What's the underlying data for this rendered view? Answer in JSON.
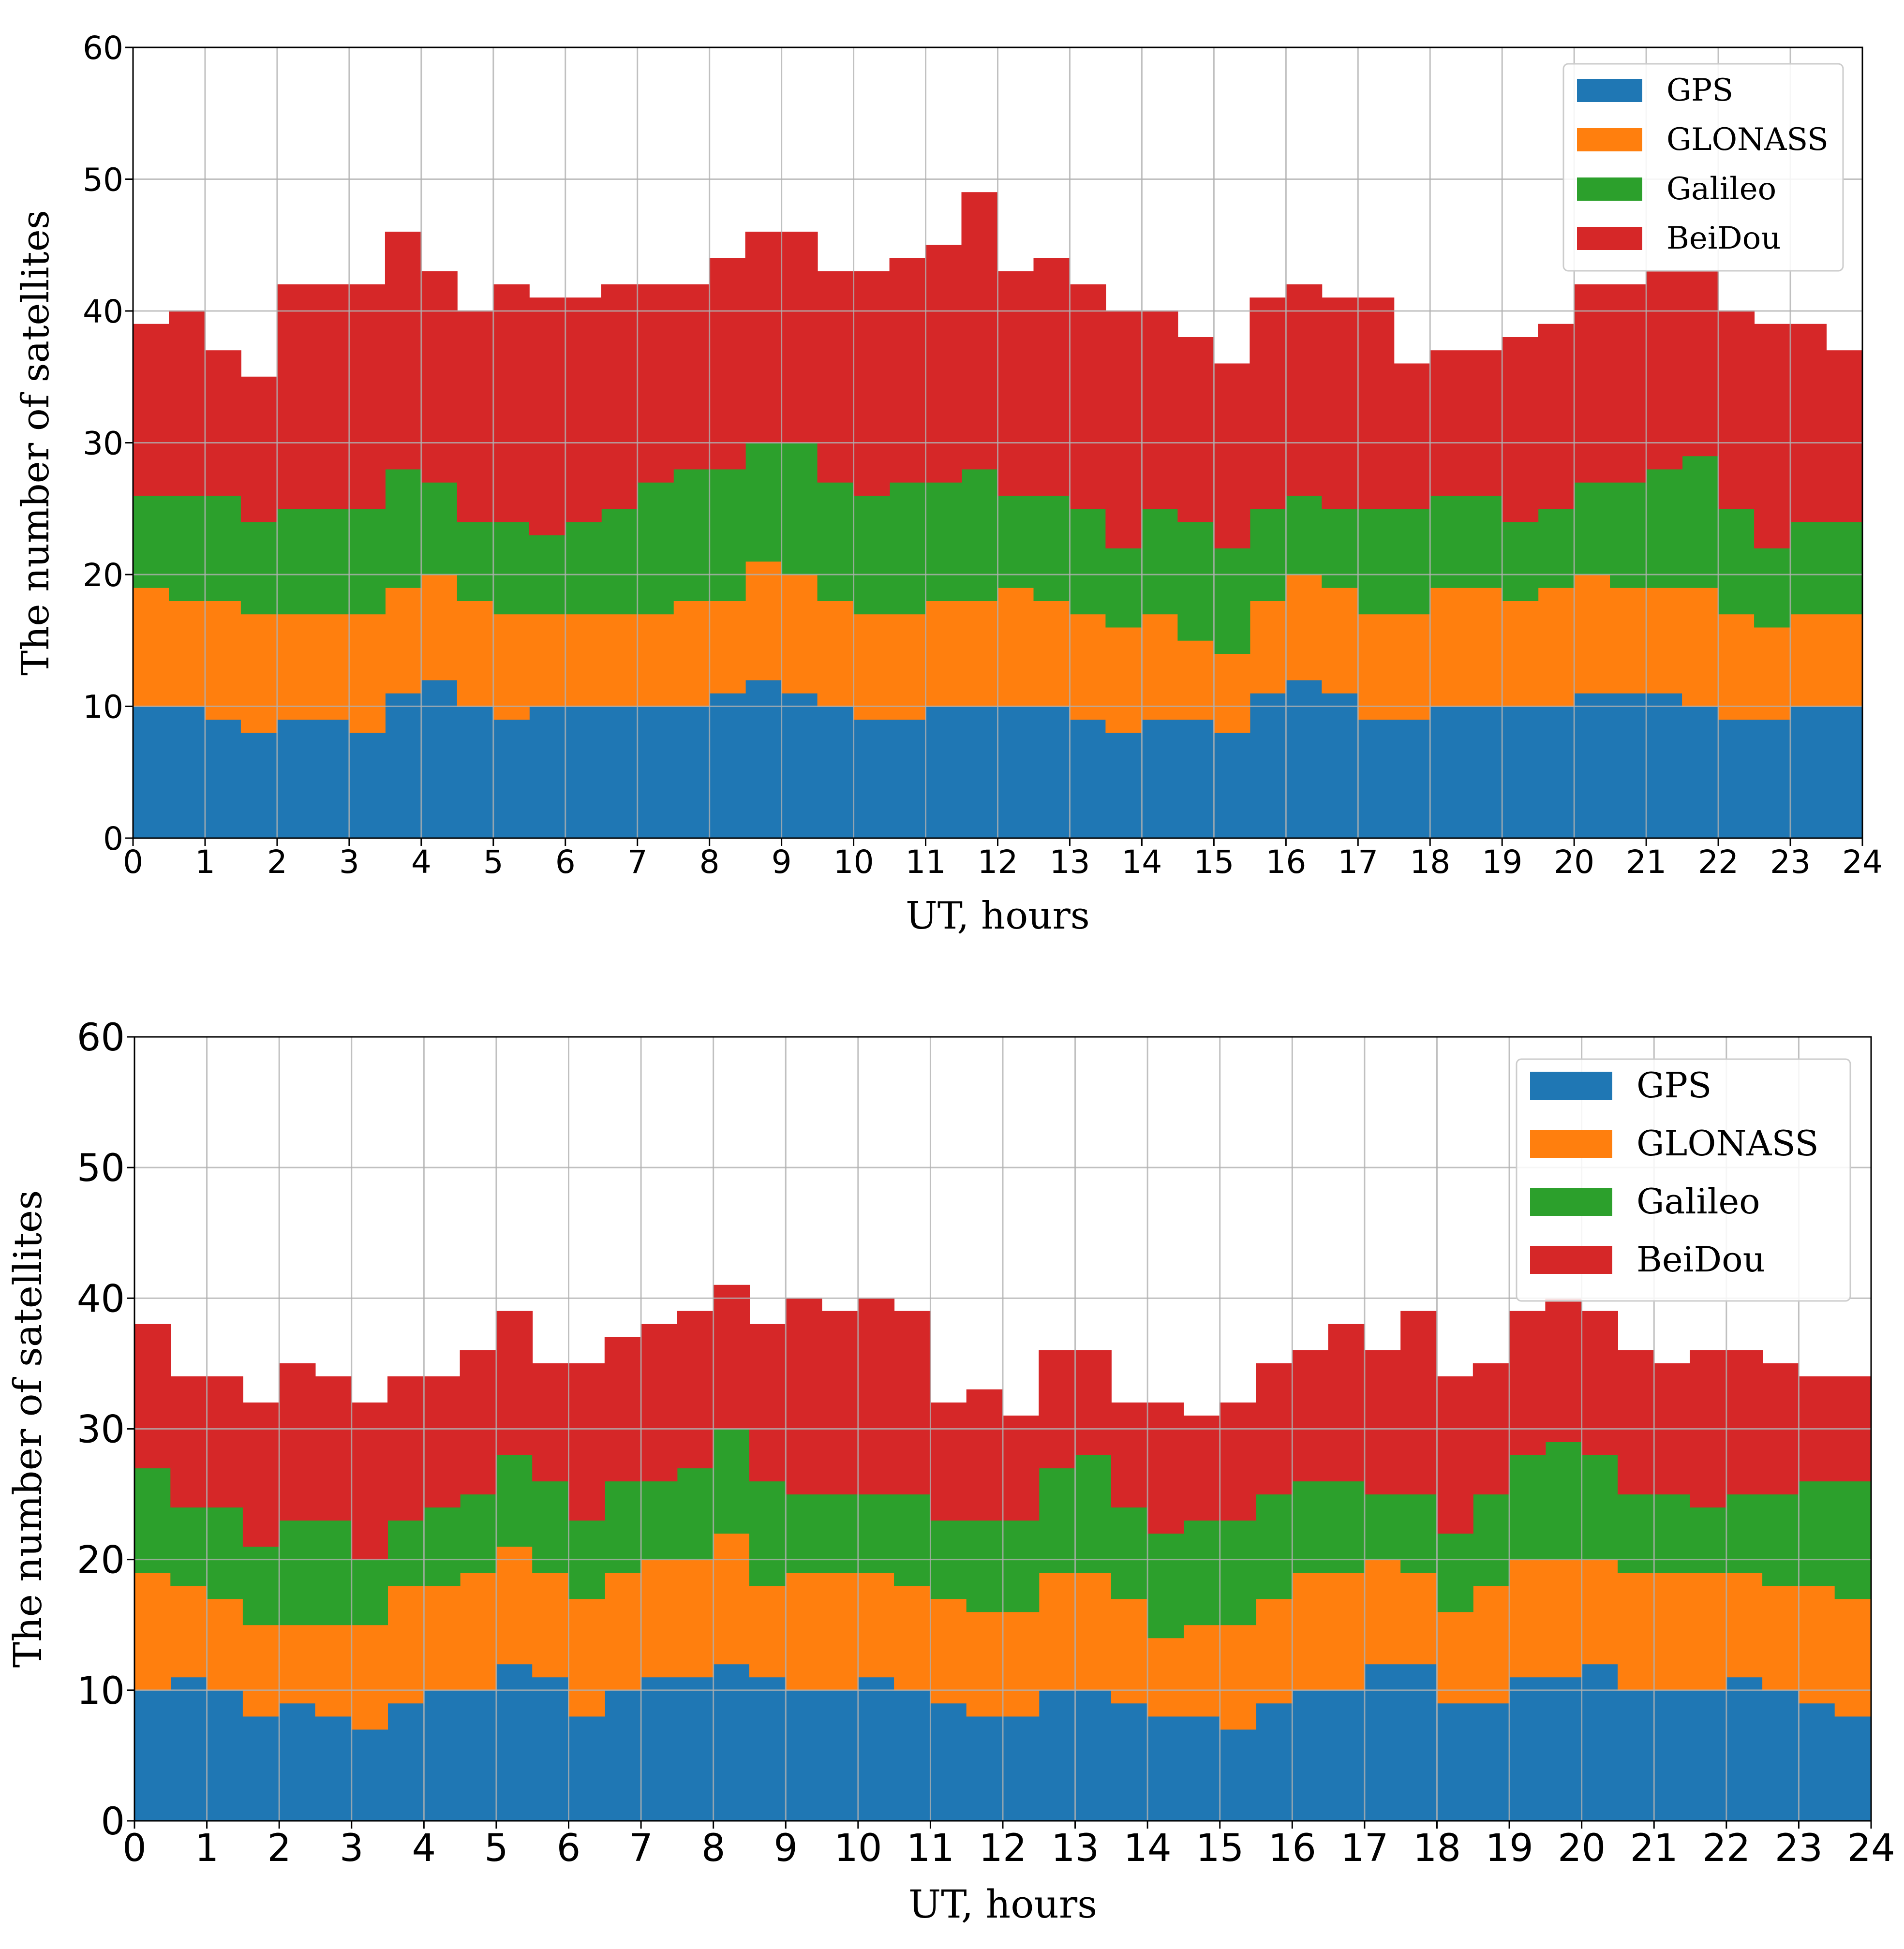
{
  "chart_data": [
    {
      "type": "area",
      "stacked": true,
      "step": true,
      "xlabel": "UT, hours",
      "ylabel": "The number of satellites",
      "xlim": [
        0,
        24
      ],
      "ylim": [
        0,
        60
      ],
      "xticks": [
        "0",
        "1",
        "2",
        "3",
        "4",
        "5",
        "6",
        "7",
        "8",
        "9",
        "10",
        "11",
        "12",
        "13",
        "14",
        "15",
        "16",
        "17",
        "18",
        "19",
        "20",
        "21",
        "22",
        "23",
        "24"
      ],
      "yticks": [
        "0",
        "10",
        "20",
        "30",
        "40",
        "50",
        "60"
      ],
      "grid": true,
      "legend_position": "top-right",
      "colors": {
        "GPS": "#1f77b4",
        "GLONASS": "#ff7f0e",
        "Galileo": "#2ca02c",
        "BeiDou": "#d62728"
      },
      "x": [
        0,
        0.5,
        1,
        1.5,
        2,
        2.5,
        3,
        3.5,
        4,
        4.5,
        5,
        5.5,
        6,
        6.5,
        7,
        7.5,
        8,
        8.5,
        9,
        9.5,
        10,
        10.5,
        11,
        11.5,
        12,
        12.5,
        13,
        13.5,
        14,
        14.5,
        15,
        15.5,
        16,
        16.5,
        17,
        17.5,
        18,
        18.5,
        19,
        19.5,
        20,
        20.5,
        21,
        21.5,
        22,
        22.5,
        23,
        23.5,
        24
      ],
      "series": [
        {
          "name": "GPS",
          "values": [
            10,
            10,
            9,
            8,
            9,
            9,
            8,
            11,
            12,
            10,
            9,
            10,
            10,
            10,
            10,
            10,
            11,
            12,
            11,
            10,
            9,
            9,
            10,
            10,
            10,
            10,
            9,
            8,
            9,
            9,
            8,
            11,
            12,
            11,
            9,
            9,
            10,
            10,
            10,
            10,
            11,
            11,
            11,
            10,
            9,
            9,
            10,
            10,
            10
          ]
        },
        {
          "name": "GLONASS",
          "values": [
            9,
            8,
            9,
            9,
            8,
            8,
            9,
            8,
            8,
            8,
            8,
            7,
            7,
            7,
            7,
            8,
            7,
            9,
            9,
            8,
            8,
            8,
            8,
            8,
            9,
            8,
            8,
            8,
            8,
            6,
            6,
            7,
            8,
            8,
            8,
            8,
            9,
            9,
            8,
            9,
            9,
            8,
            8,
            9,
            8,
            7,
            7,
            7,
            7
          ]
        },
        {
          "name": "Galileo",
          "values": [
            7,
            8,
            8,
            7,
            8,
            8,
            8,
            9,
            7,
            6,
            7,
            6,
            7,
            8,
            10,
            10,
            10,
            9,
            10,
            9,
            9,
            10,
            9,
            10,
            7,
            8,
            8,
            6,
            8,
            9,
            8,
            7,
            6,
            6,
            8,
            8,
            7,
            7,
            6,
            6,
            7,
            8,
            9,
            10,
            8,
            6,
            7,
            7,
            8
          ]
        },
        {
          "name": "BeiDou",
          "values": [
            13,
            14,
            11,
            11,
            17,
            17,
            17,
            18,
            16,
            16,
            18,
            18,
            17,
            17,
            15,
            14,
            16,
            16,
            16,
            16,
            17,
            17,
            18,
            21,
            17,
            18,
            17,
            18,
            15,
            14,
            14,
            16,
            16,
            16,
            16,
            11,
            11,
            11,
            14,
            14,
            15,
            15,
            15,
            14,
            15,
            17,
            15,
            13,
            13
          ]
        }
      ]
    },
    {
      "type": "area",
      "stacked": true,
      "step": true,
      "xlabel": "UT, hours",
      "ylabel": "The number of satellites",
      "xlim": [
        0,
        24
      ],
      "ylim": [
        0,
        60
      ],
      "xticks": [
        "0",
        "1",
        "2",
        "3",
        "4",
        "5",
        "6",
        "7",
        "8",
        "9",
        "10",
        "11",
        "12",
        "13",
        "14",
        "15",
        "16",
        "17",
        "18",
        "19",
        "20",
        "21",
        "22",
        "23",
        "24"
      ],
      "yticks": [
        "0",
        "10",
        "20",
        "30",
        "40",
        "50",
        "60"
      ],
      "grid": true,
      "legend_position": "top-right",
      "colors": {
        "GPS": "#1f77b4",
        "GLONASS": "#ff7f0e",
        "Galileo": "#2ca02c",
        "BeiDou": "#d62728"
      },
      "x": [
        0,
        0.5,
        1,
        1.5,
        2,
        2.5,
        3,
        3.5,
        4,
        4.5,
        5,
        5.5,
        6,
        6.5,
        7,
        7.5,
        8,
        8.5,
        9,
        9.5,
        10,
        10.5,
        11,
        11.5,
        12,
        12.5,
        13,
        13.5,
        14,
        14.5,
        15,
        15.5,
        16,
        16.5,
        17,
        17.5,
        18,
        18.5,
        19,
        19.5,
        20,
        20.5,
        21,
        21.5,
        22,
        22.5,
        23,
        23.5,
        24
      ],
      "series": [
        {
          "name": "GPS",
          "values": [
            10,
            11,
            10,
            8,
            9,
            8,
            7,
            9,
            10,
            10,
            12,
            11,
            8,
            10,
            11,
            11,
            12,
            11,
            10,
            10,
            11,
            10,
            9,
            8,
            8,
            10,
            10,
            9,
            8,
            8,
            7,
            9,
            10,
            10,
            12,
            12,
            9,
            9,
            11,
            11,
            12,
            10,
            10,
            10,
            11,
            10,
            9,
            8,
            10
          ]
        },
        {
          "name": "GLONASS",
          "values": [
            9,
            7,
            7,
            7,
            6,
            7,
            8,
            9,
            8,
            9,
            9,
            8,
            9,
            9,
            9,
            9,
            10,
            7,
            9,
            9,
            8,
            8,
            8,
            8,
            8,
            9,
            9,
            8,
            6,
            7,
            8,
            8,
            9,
            9,
            8,
            7,
            7,
            9,
            9,
            9,
            8,
            9,
            9,
            9,
            8,
            8,
            9,
            9,
            8
          ]
        },
        {
          "name": "Galileo",
          "values": [
            8,
            6,
            7,
            6,
            8,
            8,
            5,
            5,
            6,
            6,
            7,
            7,
            6,
            7,
            6,
            7,
            8,
            8,
            6,
            6,
            6,
            7,
            6,
            7,
            7,
            8,
            9,
            7,
            8,
            8,
            8,
            8,
            7,
            7,
            5,
            6,
            6,
            7,
            8,
            9,
            8,
            6,
            6,
            5,
            6,
            7,
            8,
            9,
            8
          ]
        },
        {
          "name": "BeiDou",
          "values": [
            11,
            10,
            10,
            11,
            12,
            11,
            12,
            11,
            10,
            11,
            11,
            9,
            12,
            11,
            12,
            12,
            11,
            12,
            15,
            14,
            15,
            14,
            9,
            10,
            8,
            9,
            8,
            8,
            10,
            8,
            9,
            10,
            10,
            12,
            11,
            14,
            12,
            10,
            11,
            11,
            11,
            11,
            10,
            12,
            11,
            10,
            8,
            8,
            12
          ]
        }
      ]
    }
  ]
}
